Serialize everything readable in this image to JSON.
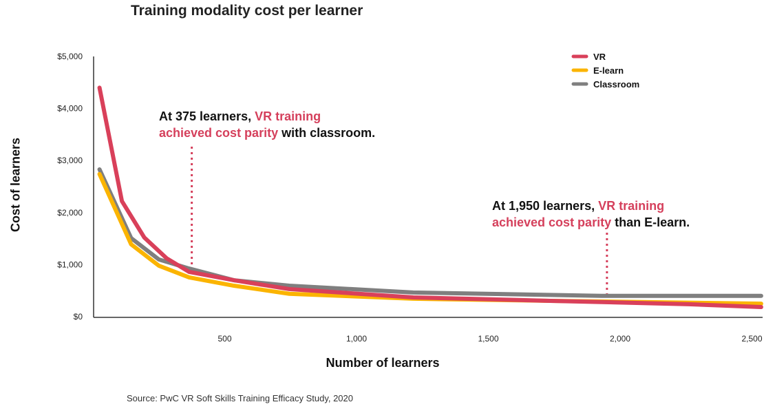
{
  "chart_data": {
    "type": "line",
    "title": "Training modality cost per learner",
    "xlabel": "Number of learners",
    "ylabel": "Cost of learners",
    "xlim": [
      0,
      2550
    ],
    "ylim": [
      0,
      5000
    ],
    "x_ticks": [
      500,
      1000,
      1500,
      2000,
      2500
    ],
    "x_tick_labels": [
      "500",
      "1,000",
      "1,500",
      "2,000",
      "2,500"
    ],
    "y_ticks": [
      0,
      1000,
      2000,
      3000,
      4000,
      5000
    ],
    "y_tick_labels": [
      "$0",
      "$1,000",
      "$2,000",
      "$3,000",
      "$4,000",
      "$5,000"
    ],
    "grid": false,
    "legend_placement": "top-right",
    "series": [
      {
        "name": "VR",
        "color": "#d9405a",
        "points": [
          [
            25,
            4400
          ],
          [
            110,
            2220
          ],
          [
            195,
            1520
          ],
          [
            280,
            1120
          ],
          [
            365,
            860
          ],
          [
            535,
            700
          ],
          [
            745,
            530
          ],
          [
            1215,
            370
          ],
          [
            1735,
            305
          ],
          [
            2260,
            240
          ],
          [
            2535,
            185
          ]
        ]
      },
      {
        "name": "E-learn",
        "color": "#fbb400",
        "points": [
          [
            25,
            2740
          ],
          [
            145,
            1390
          ],
          [
            250,
            980
          ],
          [
            365,
            755
          ],
          [
            535,
            595
          ],
          [
            745,
            440
          ],
          [
            1215,
            345
          ],
          [
            1735,
            305
          ],
          [
            2535,
            250
          ]
        ]
      },
      {
        "name": "Classroom",
        "color": "#7f7f7f",
        "points": [
          [
            25,
            2830
          ],
          [
            145,
            1510
          ],
          [
            250,
            1100
          ],
          [
            365,
            925
          ],
          [
            535,
            700
          ],
          [
            745,
            595
          ],
          [
            1215,
            465
          ],
          [
            1930,
            400
          ],
          [
            2535,
            400
          ]
        ]
      }
    ],
    "annotations": [
      {
        "x": 375,
        "line1_plain": "At 375 learners, ",
        "line1_hl": "VR training",
        "line2_hl": "achieved cost parity",
        "line2_plain": " with classroom."
      },
      {
        "x": 1950,
        "line1_plain": "At 1,950 learners, ",
        "line1_hl": "VR training",
        "line2_hl": "achieved cost parity",
        "line2_plain": " than E-learn."
      }
    ],
    "annotation_color": "#d5405c"
  },
  "source": "Source: PwC VR Soft Skills Training Efficacy Study, 2020"
}
